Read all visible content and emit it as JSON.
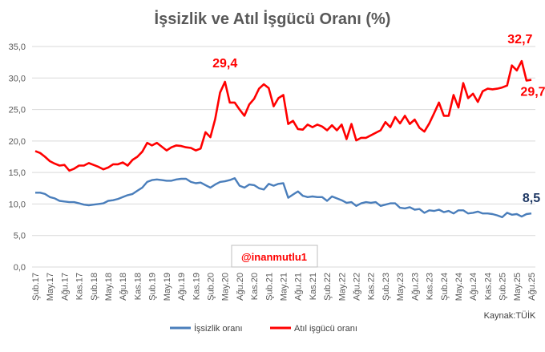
{
  "chart_data": {
    "type": "line",
    "title": "İşsizlik ve Atıl İşgücü Oranı (%)",
    "xlabel": "",
    "ylabel": "",
    "ylim": [
      0,
      35
    ],
    "yticks": [
      "0,0",
      "5,0",
      "10,0",
      "15,0",
      "20,0",
      "25,0",
      "30,0",
      "35,0"
    ],
    "ytick_values": [
      0,
      5,
      10,
      15,
      20,
      25,
      30,
      35
    ],
    "grid": true,
    "legend_position": "bottom",
    "x_start": "2017-02",
    "x_tick_labels": [
      "Şub.17",
      "May.17",
      "Ağu.17",
      "Kas.17",
      "Şub.18",
      "May.18",
      "Ağu.18",
      "Kas.18",
      "Şub.19",
      "May.19",
      "Ağu.19",
      "Kas.19",
      "Şub.20",
      "May.20",
      "Ağu.20",
      "Kas.20",
      "Şub.21",
      "May.21",
      "Ağu.21",
      "Kas.21",
      "Şub.22",
      "May.22",
      "Ağu.22",
      "Kas.22",
      "Şub.23",
      "May.23",
      "Ağu.23",
      "Kas.23",
      "Şub.24",
      "May.24",
      "Ağu.24",
      "Kas.24",
      "Şub.25",
      "May.25",
      "Ağu.25"
    ],
    "series": [
      {
        "name": "İşsizlik oranı",
        "color": "#4a7ebb",
        "values": [
          11.8,
          11.8,
          11.6,
          11.1,
          10.9,
          10.5,
          10.4,
          10.3,
          10.3,
          10.1,
          9.9,
          9.8,
          9.9,
          10.0,
          10.1,
          10.5,
          10.6,
          10.8,
          11.1,
          11.4,
          11.6,
          12.1,
          12.6,
          13.5,
          13.8,
          13.9,
          13.8,
          13.7,
          13.7,
          13.9,
          14.0,
          14.0,
          13.5,
          13.3,
          13.4,
          13.0,
          12.6,
          13.1,
          13.5,
          13.6,
          13.8,
          14.1,
          12.9,
          12.6,
          13.1,
          13.0,
          12.5,
          12.3,
          13.2,
          12.9,
          13.2,
          13.3,
          11.0,
          11.5,
          12.0,
          11.3,
          11.1,
          11.2,
          11.1,
          11.1,
          10.5,
          11.2,
          10.9,
          10.6,
          10.2,
          10.3,
          9.7,
          10.1,
          10.3,
          10.2,
          10.3,
          9.7,
          9.9,
          10.1,
          10.1,
          9.4,
          9.3,
          9.5,
          9.1,
          9.2,
          8.6,
          9.0,
          8.9,
          9.1,
          8.7,
          8.9,
          8.5,
          9.0,
          9.0,
          8.5,
          8.6,
          8.8,
          8.5,
          8.5,
          8.4,
          8.2,
          7.9,
          8.6,
          8.3,
          8.4,
          8.0,
          8.4,
          8.5
        ]
      },
      {
        "name": "Atıl işgücü oranı",
        "color": "#ff0000",
        "values": [
          18.4,
          18.1,
          17.5,
          16.8,
          16.4,
          16.1,
          16.2,
          15.3,
          15.6,
          16.1,
          16.1,
          16.5,
          16.2,
          15.9,
          15.5,
          15.8,
          16.3,
          16.3,
          16.6,
          16.1,
          17.0,
          17.5,
          18.3,
          19.7,
          19.3,
          19.7,
          19.1,
          18.5,
          19.0,
          19.3,
          19.2,
          19.0,
          18.9,
          18.5,
          18.8,
          21.4,
          20.6,
          23.5,
          27.7,
          29.4,
          26.1,
          26.1,
          25.0,
          24.0,
          25.8,
          26.7,
          28.3,
          29.0,
          28.4,
          25.5,
          26.8,
          27.3,
          22.7,
          23.2,
          21.9,
          21.8,
          22.6,
          22.2,
          22.6,
          22.3,
          21.7,
          22.5,
          21.7,
          22.6,
          20.3,
          22.7,
          20.1,
          20.5,
          20.5,
          20.9,
          21.3,
          21.7,
          23.0,
          22.2,
          23.8,
          22.8,
          24.0,
          22.7,
          23.4,
          22.1,
          21.5,
          22.8,
          24.4,
          26.1,
          24.0,
          24.0,
          27.3,
          25.3,
          29.2,
          26.8,
          27.5,
          26.2,
          27.9,
          28.3,
          28.2,
          28.3,
          28.5,
          28.8,
          32.0,
          31.2,
          32.7,
          29.6,
          29.7
        ]
      }
    ],
    "annotations": [
      {
        "text": "29,4",
        "series": 1,
        "index": 39,
        "color": "#ff0000"
      },
      {
        "text": "32,7",
        "series": 1,
        "index": 100,
        "color": "#ff0000"
      },
      {
        "text": "29,7",
        "series": 1,
        "index": 102,
        "color": "#ff0000"
      },
      {
        "text": "8,5",
        "series": 0,
        "index": 102,
        "color": "#1f3864"
      }
    ]
  },
  "watermark": "@inanmutlu1",
  "source": "Kaynak:TÜİK"
}
